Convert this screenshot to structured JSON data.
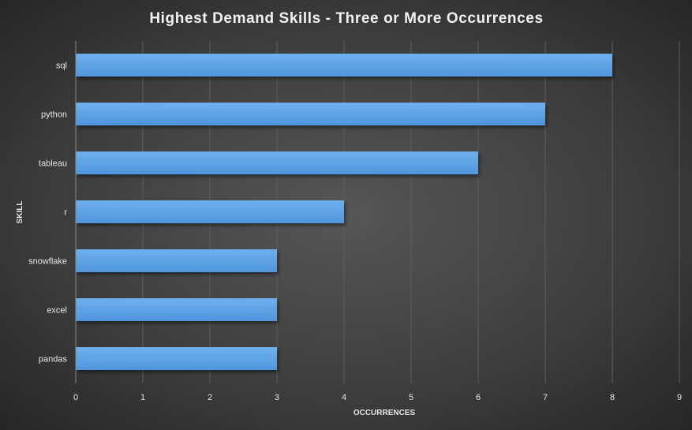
{
  "colors": {
    "bar_fill": "#4f95dc",
    "bar_highlight": "#6fb0ee",
    "bar_shadow": "#1a1a1a"
  },
  "chart_data": {
    "type": "bar",
    "orientation": "horizontal",
    "title": "Highest Demand Skills - Three or More Occurrences",
    "xlabel": "OCCURRENCES",
    "ylabel": "SKILL",
    "categories": [
      "sql",
      "python",
      "tableau",
      "r",
      "snowflake",
      "excel",
      "pandas"
    ],
    "values": [
      8,
      7,
      6,
      4,
      3,
      3,
      3
    ],
    "xlim": [
      0,
      9
    ],
    "xticks": [
      "0",
      "1",
      "2",
      "3",
      "4",
      "5",
      "6",
      "7",
      "8",
      "9"
    ],
    "grid": true,
    "legend": "none"
  }
}
